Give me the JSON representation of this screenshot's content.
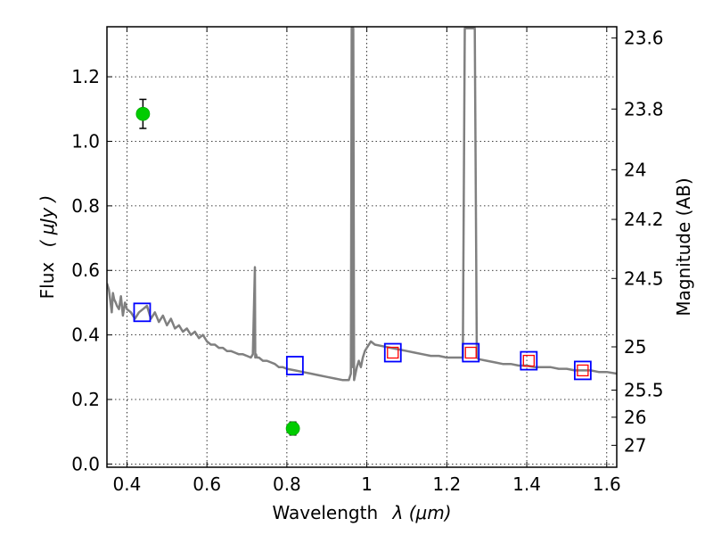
{
  "chart_data": {
    "type": "line",
    "xlabel_prefix": "Wavelength",
    "xlabel_math": "λ (μm)",
    "ylabel_prefix": "Flux",
    "ylabel_math": "( μJy )",
    "y2label": "Magnitude (AB)",
    "xlim": [
      0.35,
      1.625
    ],
    "ylim": [
      -0.01,
      1.355
    ],
    "grid": true,
    "x_ticks": [
      {
        "value": 0.4,
        "label": "0.4"
      },
      {
        "value": 0.6,
        "label": "0.6"
      },
      {
        "value": 0.8,
        "label": "0.8"
      },
      {
        "value": 1.0,
        "label": "1"
      },
      {
        "value": 1.2,
        "label": "1.2"
      },
      {
        "value": 1.4,
        "label": "1.4"
      },
      {
        "value": 1.6,
        "label": "1.6"
      }
    ],
    "y_ticks": [
      {
        "value": 0.0,
        "label": "0.0"
      },
      {
        "value": 0.2,
        "label": "0.2"
      },
      {
        "value": 0.4,
        "label": "0.4"
      },
      {
        "value": 0.6,
        "label": "0.6"
      },
      {
        "value": 0.8,
        "label": "0.8"
      },
      {
        "value": 1.0,
        "label": "1.0"
      },
      {
        "value": 1.2,
        "label": "1.2"
      }
    ],
    "y2_ticks": [
      {
        "flux": 1.32,
        "label": "23.6"
      },
      {
        "flux": 1.1,
        "label": "23.8"
      },
      {
        "flux": 0.912,
        "label": "24"
      },
      {
        "flux": 0.758,
        "label": "24.2"
      },
      {
        "flux": 0.575,
        "label": "24.5"
      },
      {
        "flux": 0.363,
        "label": "25"
      },
      {
        "flux": 0.229,
        "label": "25.5"
      },
      {
        "flux": 0.145,
        "label": "26"
      },
      {
        "flux": 0.058,
        "label": "27"
      }
    ],
    "series": [
      {
        "name": "model spectrum",
        "kind": "line",
        "color": "#808080",
        "x": [
          0.35,
          0.355,
          0.36,
          0.362,
          0.365,
          0.368,
          0.372,
          0.375,
          0.38,
          0.385,
          0.39,
          0.395,
          0.4,
          0.41,
          0.42,
          0.43,
          0.44,
          0.45,
          0.46,
          0.47,
          0.48,
          0.49,
          0.5,
          0.51,
          0.52,
          0.53,
          0.54,
          0.55,
          0.56,
          0.57,
          0.58,
          0.59,
          0.6,
          0.61,
          0.62,
          0.63,
          0.64,
          0.65,
          0.66,
          0.67,
          0.68,
          0.69,
          0.7,
          0.71,
          0.715,
          0.72,
          0.721,
          0.723,
          0.725,
          0.73,
          0.74,
          0.75,
          0.76,
          0.77,
          0.78,
          0.79,
          0.8,
          0.82,
          0.84,
          0.86,
          0.88,
          0.9,
          0.92,
          0.94,
          0.955,
          0.96,
          0.962,
          0.963,
          0.965,
          0.966,
          0.968,
          0.97,
          0.975,
          0.98,
          0.985,
          0.99,
          0.995,
          1.0,
          1.01,
          1.02,
          1.04,
          1.06,
          1.08,
          1.1,
          1.12,
          1.14,
          1.16,
          1.18,
          1.2,
          1.22,
          1.24,
          1.245,
          1.25,
          1.255,
          1.26,
          1.265,
          1.27,
          1.275,
          1.28,
          1.3,
          1.32,
          1.34,
          1.36,
          1.38,
          1.4,
          1.42,
          1.44,
          1.46,
          1.48,
          1.5,
          1.52,
          1.54,
          1.56,
          1.58,
          1.6,
          1.625
        ],
        "y": [
          0.56,
          0.54,
          0.49,
          0.47,
          0.53,
          0.51,
          0.5,
          0.49,
          0.48,
          0.52,
          0.46,
          0.5,
          0.48,
          0.47,
          0.45,
          0.47,
          0.48,
          0.49,
          0.45,
          0.47,
          0.44,
          0.46,
          0.43,
          0.45,
          0.42,
          0.43,
          0.41,
          0.42,
          0.4,
          0.41,
          0.39,
          0.4,
          0.38,
          0.37,
          0.37,
          0.36,
          0.36,
          0.35,
          0.35,
          0.345,
          0.34,
          0.34,
          0.335,
          0.33,
          0.34,
          0.61,
          0.33,
          0.34,
          0.33,
          0.33,
          0.32,
          0.32,
          0.315,
          0.31,
          0.3,
          0.3,
          0.295,
          0.29,
          0.285,
          0.28,
          0.275,
          0.27,
          0.265,
          0.26,
          0.26,
          0.28,
          1.35,
          1.35,
          0.3,
          1.35,
          0.26,
          0.27,
          0.3,
          0.32,
          0.3,
          0.33,
          0.35,
          0.36,
          0.38,
          0.37,
          0.365,
          0.36,
          0.355,
          0.35,
          0.345,
          0.34,
          0.335,
          0.335,
          0.33,
          0.33,
          0.33,
          1.35,
          1.35,
          1.35,
          1.35,
          1.35,
          1.35,
          0.33,
          0.325,
          0.32,
          0.315,
          0.31,
          0.31,
          0.305,
          0.305,
          0.3,
          0.3,
          0.3,
          0.295,
          0.295,
          0.29,
          0.29,
          0.29,
          0.285,
          0.285,
          0.28
        ]
      },
      {
        "name": "photometry (blue squares)",
        "kind": "square-open",
        "color": "#0000ff",
        "x": [
          0.438,
          0.82,
          1.065,
          1.26,
          1.405,
          1.54
        ],
        "y": [
          0.47,
          0.305,
          0.345,
          0.345,
          0.32,
          0.29
        ]
      },
      {
        "name": "model photometry (red squares)",
        "kind": "square-small",
        "color": "#ff0000",
        "x": [
          1.065,
          1.26,
          1.405,
          1.54
        ],
        "y": [
          0.345,
          0.345,
          0.32,
          0.29
        ]
      },
      {
        "name": "observed flux (green points)",
        "kind": "point-errorbar",
        "color": "#00cc00",
        "x": [
          0.44,
          0.815
        ],
        "y": [
          1.085,
          0.11
        ],
        "yerr": [
          0.045,
          0.02
        ]
      }
    ]
  }
}
